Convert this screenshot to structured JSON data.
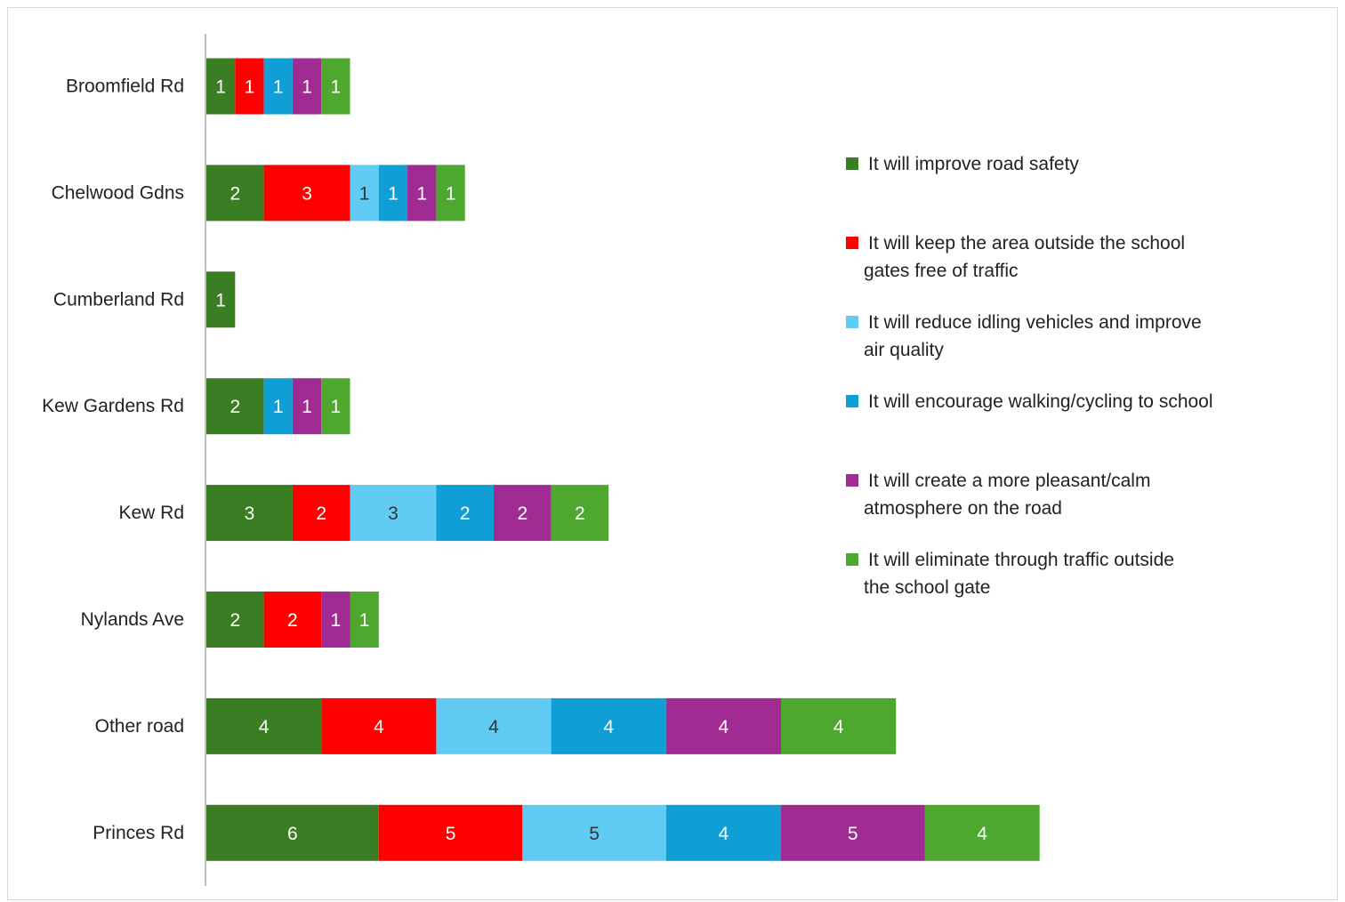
{
  "chart_data": {
    "type": "bar",
    "orientation": "horizontal",
    "stacked": true,
    "categories": [
      "Broomfield Rd",
      "Chelwood Gdns",
      "Cumberland Rd",
      "Kew Gardens Rd",
      "Kew Rd",
      "Nylands Ave",
      "Other road",
      "Princes Rd"
    ],
    "series": [
      {
        "name": "It will improve road safety",
        "color": "#3a7d22",
        "values": [
          1,
          2,
          1,
          2,
          3,
          2,
          4,
          6
        ]
      },
      {
        "name": "It will keep the area outside the school gates free of traffic",
        "color": "#ff0000",
        "values": [
          1,
          3,
          0,
          0,
          2,
          2,
          4,
          5
        ]
      },
      {
        "name": "It will reduce idling vehicles and improve air quality",
        "color": "#61cbf3",
        "values": [
          0,
          1,
          0,
          0,
          3,
          0,
          4,
          5
        ]
      },
      {
        "name": "It will encourage walking/cycling to school",
        "color": "#0f9ed5",
        "values": [
          1,
          1,
          0,
          1,
          2,
          0,
          4,
          4
        ]
      },
      {
        "name": "It will create a more pleasant/calm atmosphere on the road",
        "color": "#a02b93",
        "values": [
          1,
          1,
          0,
          1,
          2,
          1,
          4,
          5
        ]
      },
      {
        "name": "It will eliminate through traffic outside the school gate",
        "color": "#4ea72e",
        "values": [
          1,
          1,
          0,
          1,
          2,
          1,
          4,
          4
        ]
      }
    ],
    "title": "",
    "xlabel": "",
    "ylabel": "",
    "xlim": [
      0,
      29
    ],
    "data_labels": true,
    "grid": false,
    "legend_position": "right"
  }
}
